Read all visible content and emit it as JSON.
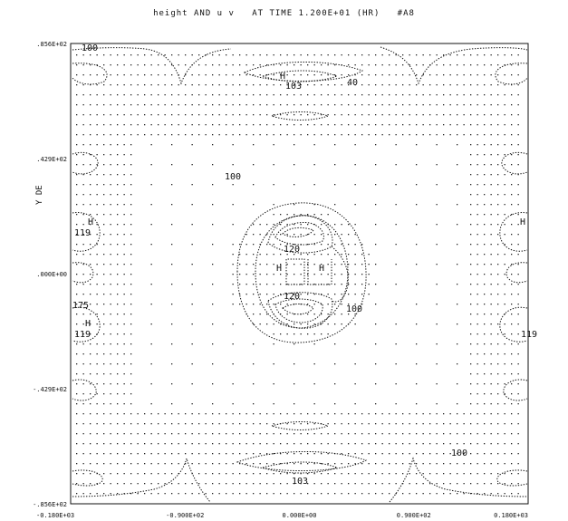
{
  "chart_data": {
    "type": "contour-vector",
    "title": "height AND u v   AT TIME 1.200E+01 (HR)   #A8",
    "ylabel": "Y DE",
    "xlabel": "",
    "x_tick_labels": [
      "-0.180E+03",
      "-0.900E+02",
      "0.000E+00",
      "0.900E+02",
      "0.180E+03"
    ],
    "y_tick_labels": [
      ".856E+02",
      ".429E+02",
      ".000E+00",
      "-.429E+02",
      "-.856E+02"
    ],
    "contour_labels": [
      "100",
      "100",
      "100",
      "100",
      "103",
      "103",
      "H",
      "H",
      "H",
      "H",
      "H",
      "H",
      "119",
      "119",
      "119",
      "175",
      "120",
      "120",
      "40"
    ],
    "grid": false,
    "colors": {
      "ink": "#111111",
      "background": "#ffffff"
    }
  }
}
